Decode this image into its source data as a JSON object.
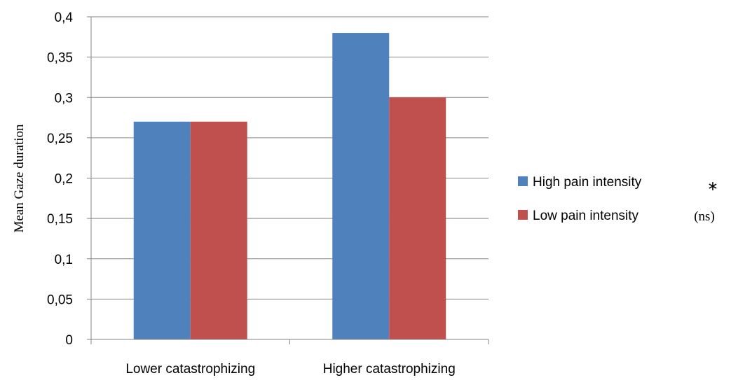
{
  "chart_data": {
    "type": "bar",
    "categories": [
      "Lower catastrophizing",
      "Higher catastrophizing"
    ],
    "series": [
      {
        "name": "High pain intensity",
        "note": "*",
        "color": "#4f81bd",
        "values": [
          0.27,
          0.38
        ]
      },
      {
        "name": "Low pain intensity",
        "note": "(ns)",
        "color": "#c0504d",
        "values": [
          0.27,
          0.3
        ]
      }
    ],
    "ylabel": "Mean  Gaze duration",
    "ylim": [
      0,
      0.4
    ],
    "yticks": [
      0,
      0.05,
      0.1,
      0.15,
      0.2,
      0.25,
      0.3,
      0.35,
      0.4
    ],
    "ytick_labels": [
      "0",
      "0,05",
      "0,1",
      "0,15",
      "0,2",
      "0,25",
      "0,3",
      "0,35",
      "0,4"
    ],
    "grid": true,
    "legend_position": "right"
  }
}
